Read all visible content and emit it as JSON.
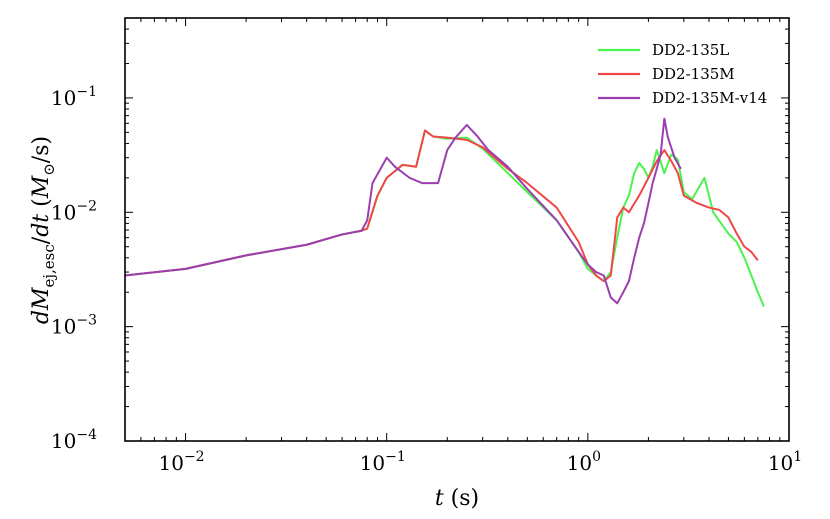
{
  "chart_data": {
    "type": "line",
    "xscale": "log",
    "yscale": "log",
    "xlim": [
      0.005,
      10
    ],
    "ylim": [
      0.0001,
      0.5
    ],
    "xlabel": "t (s)",
    "ylabel": "dM_ej,esc/dt (M_sun/s)",
    "xticks": [
      {
        "value": 0.01,
        "label": "10",
        "exp": "−2"
      },
      {
        "value": 0.1,
        "label": "10",
        "exp": "−1"
      },
      {
        "value": 1,
        "label": "10",
        "exp": "0"
      },
      {
        "value": 10,
        "label": "10",
        "exp": "1"
      }
    ],
    "yticks": [
      {
        "value": 0.0001,
        "label": "10",
        "exp": "−4"
      },
      {
        "value": 0.001,
        "label": "10",
        "exp": "−3"
      },
      {
        "value": 0.01,
        "label": "10",
        "exp": "−2"
      },
      {
        "value": 0.1,
        "label": "10",
        "exp": "−1"
      }
    ],
    "legend_position": "top-right",
    "series": [
      {
        "name": "DD2-135L",
        "color": "#4cf24c",
        "points": [
          [
            0.005,
            0.0028
          ],
          [
            0.01,
            0.0032
          ],
          [
            0.02,
            0.0042
          ],
          [
            0.04,
            0.0052
          ],
          [
            0.06,
            0.0064
          ],
          [
            0.075,
            0.0069
          ],
          [
            0.08,
            0.0072
          ],
          [
            0.09,
            0.014
          ],
          [
            0.1,
            0.02
          ],
          [
            0.12,
            0.026
          ],
          [
            0.14,
            0.025
          ],
          [
            0.155,
            0.052
          ],
          [
            0.17,
            0.046
          ],
          [
            0.2,
            0.044
          ],
          [
            0.25,
            0.045
          ],
          [
            0.3,
            0.036
          ],
          [
            0.4,
            0.022
          ],
          [
            0.5,
            0.015
          ],
          [
            0.7,
            0.0085
          ],
          [
            0.9,
            0.0045
          ],
          [
            1.0,
            0.0032
          ],
          [
            1.1,
            0.0028
          ],
          [
            1.2,
            0.0025
          ],
          [
            1.3,
            0.003
          ],
          [
            1.4,
            0.006
          ],
          [
            1.5,
            0.011
          ],
          [
            1.6,
            0.014
          ],
          [
            1.7,
            0.022
          ],
          [
            1.8,
            0.027
          ],
          [
            1.9,
            0.024
          ],
          [
            2.0,
            0.02
          ],
          [
            2.1,
            0.025
          ],
          [
            2.2,
            0.035
          ],
          [
            2.4,
            0.022
          ],
          [
            2.6,
            0.032
          ],
          [
            2.8,
            0.029
          ],
          [
            3.0,
            0.015
          ],
          [
            3.3,
            0.013
          ],
          [
            3.6,
            0.017
          ],
          [
            3.8,
            0.02
          ],
          [
            4.2,
            0.01
          ],
          [
            5.0,
            0.0065
          ],
          [
            5.5,
            0.0055
          ],
          [
            6.0,
            0.004
          ],
          [
            6.5,
            0.0028
          ],
          [
            7.0,
            0.002
          ],
          [
            7.5,
            0.0015
          ]
        ]
      },
      {
        "name": "DD2-135M",
        "color": "#f04848",
        "points": [
          [
            0.005,
            0.0028
          ],
          [
            0.01,
            0.0032
          ],
          [
            0.02,
            0.0042
          ],
          [
            0.04,
            0.0052
          ],
          [
            0.06,
            0.0064
          ],
          [
            0.075,
            0.0069
          ],
          [
            0.08,
            0.0072
          ],
          [
            0.09,
            0.014
          ],
          [
            0.1,
            0.02
          ],
          [
            0.12,
            0.026
          ],
          [
            0.14,
            0.025
          ],
          [
            0.155,
            0.052
          ],
          [
            0.17,
            0.046
          ],
          [
            0.2,
            0.045
          ],
          [
            0.25,
            0.043
          ],
          [
            0.3,
            0.037
          ],
          [
            0.4,
            0.024
          ],
          [
            0.5,
            0.018
          ],
          [
            0.7,
            0.011
          ],
          [
            0.9,
            0.0055
          ],
          [
            1.0,
            0.0035
          ],
          [
            1.1,
            0.0028
          ],
          [
            1.2,
            0.0025
          ],
          [
            1.3,
            0.0028
          ],
          [
            1.4,
            0.009
          ],
          [
            1.5,
            0.011
          ],
          [
            1.6,
            0.01
          ],
          [
            1.8,
            0.014
          ],
          [
            2.0,
            0.02
          ],
          [
            2.2,
            0.028
          ],
          [
            2.4,
            0.035
          ],
          [
            2.6,
            0.028
          ],
          [
            2.8,
            0.022
          ],
          [
            3.0,
            0.014
          ],
          [
            3.5,
            0.012
          ],
          [
            4.0,
            0.011
          ],
          [
            4.5,
            0.0105
          ],
          [
            5.0,
            0.009
          ],
          [
            5.5,
            0.0065
          ],
          [
            6.0,
            0.005
          ],
          [
            6.5,
            0.0045
          ],
          [
            7.0,
            0.0038
          ]
        ]
      },
      {
        "name": "DD2-135M-v14",
        "color": "#9b3fb0",
        "points": [
          [
            0.005,
            0.0028
          ],
          [
            0.01,
            0.0032
          ],
          [
            0.02,
            0.0042
          ],
          [
            0.04,
            0.0052
          ],
          [
            0.06,
            0.0064
          ],
          [
            0.075,
            0.0069
          ],
          [
            0.08,
            0.0085
          ],
          [
            0.085,
            0.018
          ],
          [
            0.1,
            0.03
          ],
          [
            0.11,
            0.025
          ],
          [
            0.13,
            0.02
          ],
          [
            0.15,
            0.018
          ],
          [
            0.18,
            0.018
          ],
          [
            0.2,
            0.035
          ],
          [
            0.22,
            0.045
          ],
          [
            0.25,
            0.058
          ],
          [
            0.28,
            0.047
          ],
          [
            0.32,
            0.035
          ],
          [
            0.4,
            0.025
          ],
          [
            0.5,
            0.016
          ],
          [
            0.7,
            0.0085
          ],
          [
            0.9,
            0.0045
          ],
          [
            1.0,
            0.0035
          ],
          [
            1.1,
            0.003
          ],
          [
            1.2,
            0.0028
          ],
          [
            1.3,
            0.0018
          ],
          [
            1.4,
            0.0016
          ],
          [
            1.5,
            0.002
          ],
          [
            1.6,
            0.0025
          ],
          [
            1.7,
            0.004
          ],
          [
            1.8,
            0.006
          ],
          [
            1.9,
            0.008
          ],
          [
            2.0,
            0.012
          ],
          [
            2.1,
            0.018
          ],
          [
            2.2,
            0.024
          ],
          [
            2.3,
            0.032
          ],
          [
            2.4,
            0.066
          ],
          [
            2.5,
            0.045
          ],
          [
            2.7,
            0.03
          ],
          [
            2.9,
            0.024
          ]
        ]
      }
    ]
  }
}
